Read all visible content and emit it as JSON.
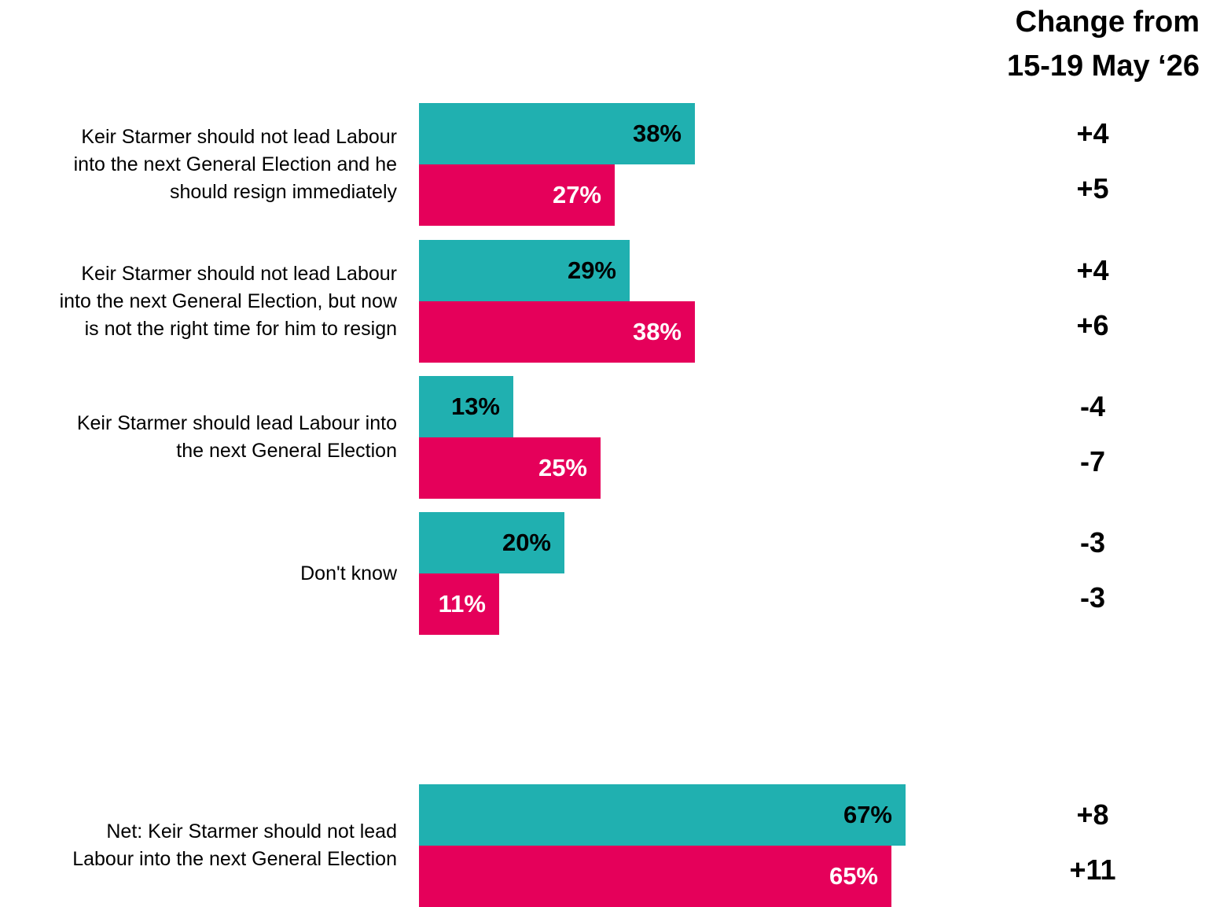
{
  "header": {
    "change_line1": "Change from",
    "change_line2": "15-19 May ‘26"
  },
  "colors": {
    "series1": "#20b0b0",
    "series2": "#e5005a",
    "series1_label": "#000000",
    "series2_label": "#ffffff"
  },
  "chart_data": {
    "type": "bar",
    "orientation": "horizontal",
    "categories": [
      "Keir Starmer should not lead Labour into the next General Election and he should resign immediately",
      "Keir Starmer should not lead Labour into the next General Election, but now is not the right time for him to resign",
      "Keir Starmer should lead Labour into the next General Election",
      "Don't know",
      "Net: Keir Starmer should not lead Labour into the next General Election"
    ],
    "category_lines": [
      [
        "Keir Starmer should not lead Labour",
        "into the next General Election and he",
        "should resign immediately"
      ],
      [
        "Keir Starmer should not lead Labour",
        "into the next General Election, but now",
        "is not the right time for him to resign"
      ],
      [
        "Keir Starmer should lead Labour into",
        "the next General Election"
      ],
      [
        "Don't know"
      ],
      [
        "Net: Keir Starmer should not lead",
        "Labour into the next General Election"
      ]
    ],
    "series": [
      {
        "values": [
          38,
          29,
          13,
          20,
          67
        ],
        "labels": [
          "38%",
          "29%",
          "13%",
          "20%",
          "67%"
        ],
        "change": [
          "+4",
          "+4",
          "-4",
          "-3",
          "+8"
        ]
      },
      {
        "values": [
          27,
          38,
          25,
          11,
          65
        ],
        "labels": [
          "27%",
          "38%",
          "25%",
          "11%",
          "65%"
        ],
        "change": [
          "+5",
          "+6",
          "-7",
          "-3",
          "+11"
        ]
      }
    ],
    "xlim": [
      0,
      100
    ],
    "grid": false
  }
}
